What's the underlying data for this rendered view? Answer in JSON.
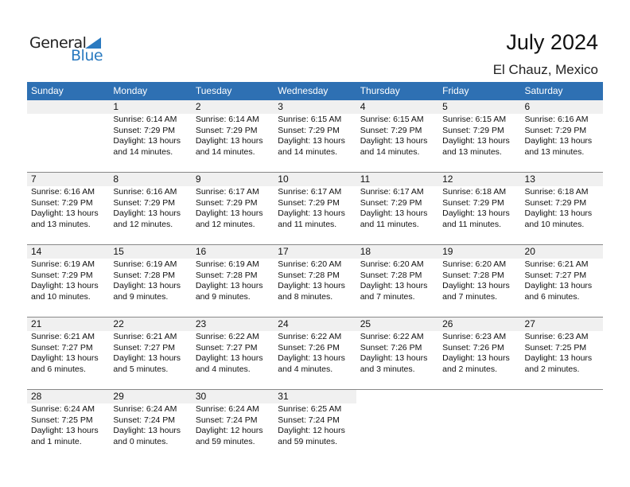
{
  "logo": {
    "text1": "General",
    "text2": "Blue"
  },
  "header": {
    "title": "July 2024",
    "location": "El Chauz, Mexico"
  },
  "colors": {
    "accent": "#2e70b3",
    "date_band": "#f0f0f0"
  },
  "weekdays": [
    "Sunday",
    "Monday",
    "Tuesday",
    "Wednesday",
    "Thursday",
    "Friday",
    "Saturday"
  ],
  "first_weekday_offset": 1,
  "days": [
    {
      "day": "1",
      "sunrise": "Sunrise: 6:14 AM",
      "sunset": "Sunset: 7:29 PM",
      "daylight1": "Daylight: 13 hours",
      "daylight2": "and 14 minutes."
    },
    {
      "day": "2",
      "sunrise": "Sunrise: 6:14 AM",
      "sunset": "Sunset: 7:29 PM",
      "daylight1": "Daylight: 13 hours",
      "daylight2": "and 14 minutes."
    },
    {
      "day": "3",
      "sunrise": "Sunrise: 6:15 AM",
      "sunset": "Sunset: 7:29 PM",
      "daylight1": "Daylight: 13 hours",
      "daylight2": "and 14 minutes."
    },
    {
      "day": "4",
      "sunrise": "Sunrise: 6:15 AM",
      "sunset": "Sunset: 7:29 PM",
      "daylight1": "Daylight: 13 hours",
      "daylight2": "and 14 minutes."
    },
    {
      "day": "5",
      "sunrise": "Sunrise: 6:15 AM",
      "sunset": "Sunset: 7:29 PM",
      "daylight1": "Daylight: 13 hours",
      "daylight2": "and 13 minutes."
    },
    {
      "day": "6",
      "sunrise": "Sunrise: 6:16 AM",
      "sunset": "Sunset: 7:29 PM",
      "daylight1": "Daylight: 13 hours",
      "daylight2": "and 13 minutes."
    },
    {
      "day": "7",
      "sunrise": "Sunrise: 6:16 AM",
      "sunset": "Sunset: 7:29 PM",
      "daylight1": "Daylight: 13 hours",
      "daylight2": "and 13 minutes."
    },
    {
      "day": "8",
      "sunrise": "Sunrise: 6:16 AM",
      "sunset": "Sunset: 7:29 PM",
      "daylight1": "Daylight: 13 hours",
      "daylight2": "and 12 minutes."
    },
    {
      "day": "9",
      "sunrise": "Sunrise: 6:17 AM",
      "sunset": "Sunset: 7:29 PM",
      "daylight1": "Daylight: 13 hours",
      "daylight2": "and 12 minutes."
    },
    {
      "day": "10",
      "sunrise": "Sunrise: 6:17 AM",
      "sunset": "Sunset: 7:29 PM",
      "daylight1": "Daylight: 13 hours",
      "daylight2": "and 11 minutes."
    },
    {
      "day": "11",
      "sunrise": "Sunrise: 6:17 AM",
      "sunset": "Sunset: 7:29 PM",
      "daylight1": "Daylight: 13 hours",
      "daylight2": "and 11 minutes."
    },
    {
      "day": "12",
      "sunrise": "Sunrise: 6:18 AM",
      "sunset": "Sunset: 7:29 PM",
      "daylight1": "Daylight: 13 hours",
      "daylight2": "and 11 minutes."
    },
    {
      "day": "13",
      "sunrise": "Sunrise: 6:18 AM",
      "sunset": "Sunset: 7:29 PM",
      "daylight1": "Daylight: 13 hours",
      "daylight2": "and 10 minutes."
    },
    {
      "day": "14",
      "sunrise": "Sunrise: 6:19 AM",
      "sunset": "Sunset: 7:29 PM",
      "daylight1": "Daylight: 13 hours",
      "daylight2": "and 10 minutes."
    },
    {
      "day": "15",
      "sunrise": "Sunrise: 6:19 AM",
      "sunset": "Sunset: 7:28 PM",
      "daylight1": "Daylight: 13 hours",
      "daylight2": "and 9 minutes."
    },
    {
      "day": "16",
      "sunrise": "Sunrise: 6:19 AM",
      "sunset": "Sunset: 7:28 PM",
      "daylight1": "Daylight: 13 hours",
      "daylight2": "and 9 minutes."
    },
    {
      "day": "17",
      "sunrise": "Sunrise: 6:20 AM",
      "sunset": "Sunset: 7:28 PM",
      "daylight1": "Daylight: 13 hours",
      "daylight2": "and 8 minutes."
    },
    {
      "day": "18",
      "sunrise": "Sunrise: 6:20 AM",
      "sunset": "Sunset: 7:28 PM",
      "daylight1": "Daylight: 13 hours",
      "daylight2": "and 7 minutes."
    },
    {
      "day": "19",
      "sunrise": "Sunrise: 6:20 AM",
      "sunset": "Sunset: 7:28 PM",
      "daylight1": "Daylight: 13 hours",
      "daylight2": "and 7 minutes."
    },
    {
      "day": "20",
      "sunrise": "Sunrise: 6:21 AM",
      "sunset": "Sunset: 7:27 PM",
      "daylight1": "Daylight: 13 hours",
      "daylight2": "and 6 minutes."
    },
    {
      "day": "21",
      "sunrise": "Sunrise: 6:21 AM",
      "sunset": "Sunset: 7:27 PM",
      "daylight1": "Daylight: 13 hours",
      "daylight2": "and 6 minutes."
    },
    {
      "day": "22",
      "sunrise": "Sunrise: 6:21 AM",
      "sunset": "Sunset: 7:27 PM",
      "daylight1": "Daylight: 13 hours",
      "daylight2": "and 5 minutes."
    },
    {
      "day": "23",
      "sunrise": "Sunrise: 6:22 AM",
      "sunset": "Sunset: 7:27 PM",
      "daylight1": "Daylight: 13 hours",
      "daylight2": "and 4 minutes."
    },
    {
      "day": "24",
      "sunrise": "Sunrise: 6:22 AM",
      "sunset": "Sunset: 7:26 PM",
      "daylight1": "Daylight: 13 hours",
      "daylight2": "and 4 minutes."
    },
    {
      "day": "25",
      "sunrise": "Sunrise: 6:22 AM",
      "sunset": "Sunset: 7:26 PM",
      "daylight1": "Daylight: 13 hours",
      "daylight2": "and 3 minutes."
    },
    {
      "day": "26",
      "sunrise": "Sunrise: 6:23 AM",
      "sunset": "Sunset: 7:26 PM",
      "daylight1": "Daylight: 13 hours",
      "daylight2": "and 2 minutes."
    },
    {
      "day": "27",
      "sunrise": "Sunrise: 6:23 AM",
      "sunset": "Sunset: 7:25 PM",
      "daylight1": "Daylight: 13 hours",
      "daylight2": "and 2 minutes."
    },
    {
      "day": "28",
      "sunrise": "Sunrise: 6:24 AM",
      "sunset": "Sunset: 7:25 PM",
      "daylight1": "Daylight: 13 hours",
      "daylight2": "and 1 minute."
    },
    {
      "day": "29",
      "sunrise": "Sunrise: 6:24 AM",
      "sunset": "Sunset: 7:24 PM",
      "daylight1": "Daylight: 13 hours",
      "daylight2": "and 0 minutes."
    },
    {
      "day": "30",
      "sunrise": "Sunrise: 6:24 AM",
      "sunset": "Sunset: 7:24 PM",
      "daylight1": "Daylight: 12 hours",
      "daylight2": "and 59 minutes."
    },
    {
      "day": "31",
      "sunrise": "Sunrise: 6:25 AM",
      "sunset": "Sunset: 7:24 PM",
      "daylight1": "Daylight: 12 hours",
      "daylight2": "and 59 minutes."
    }
  ]
}
